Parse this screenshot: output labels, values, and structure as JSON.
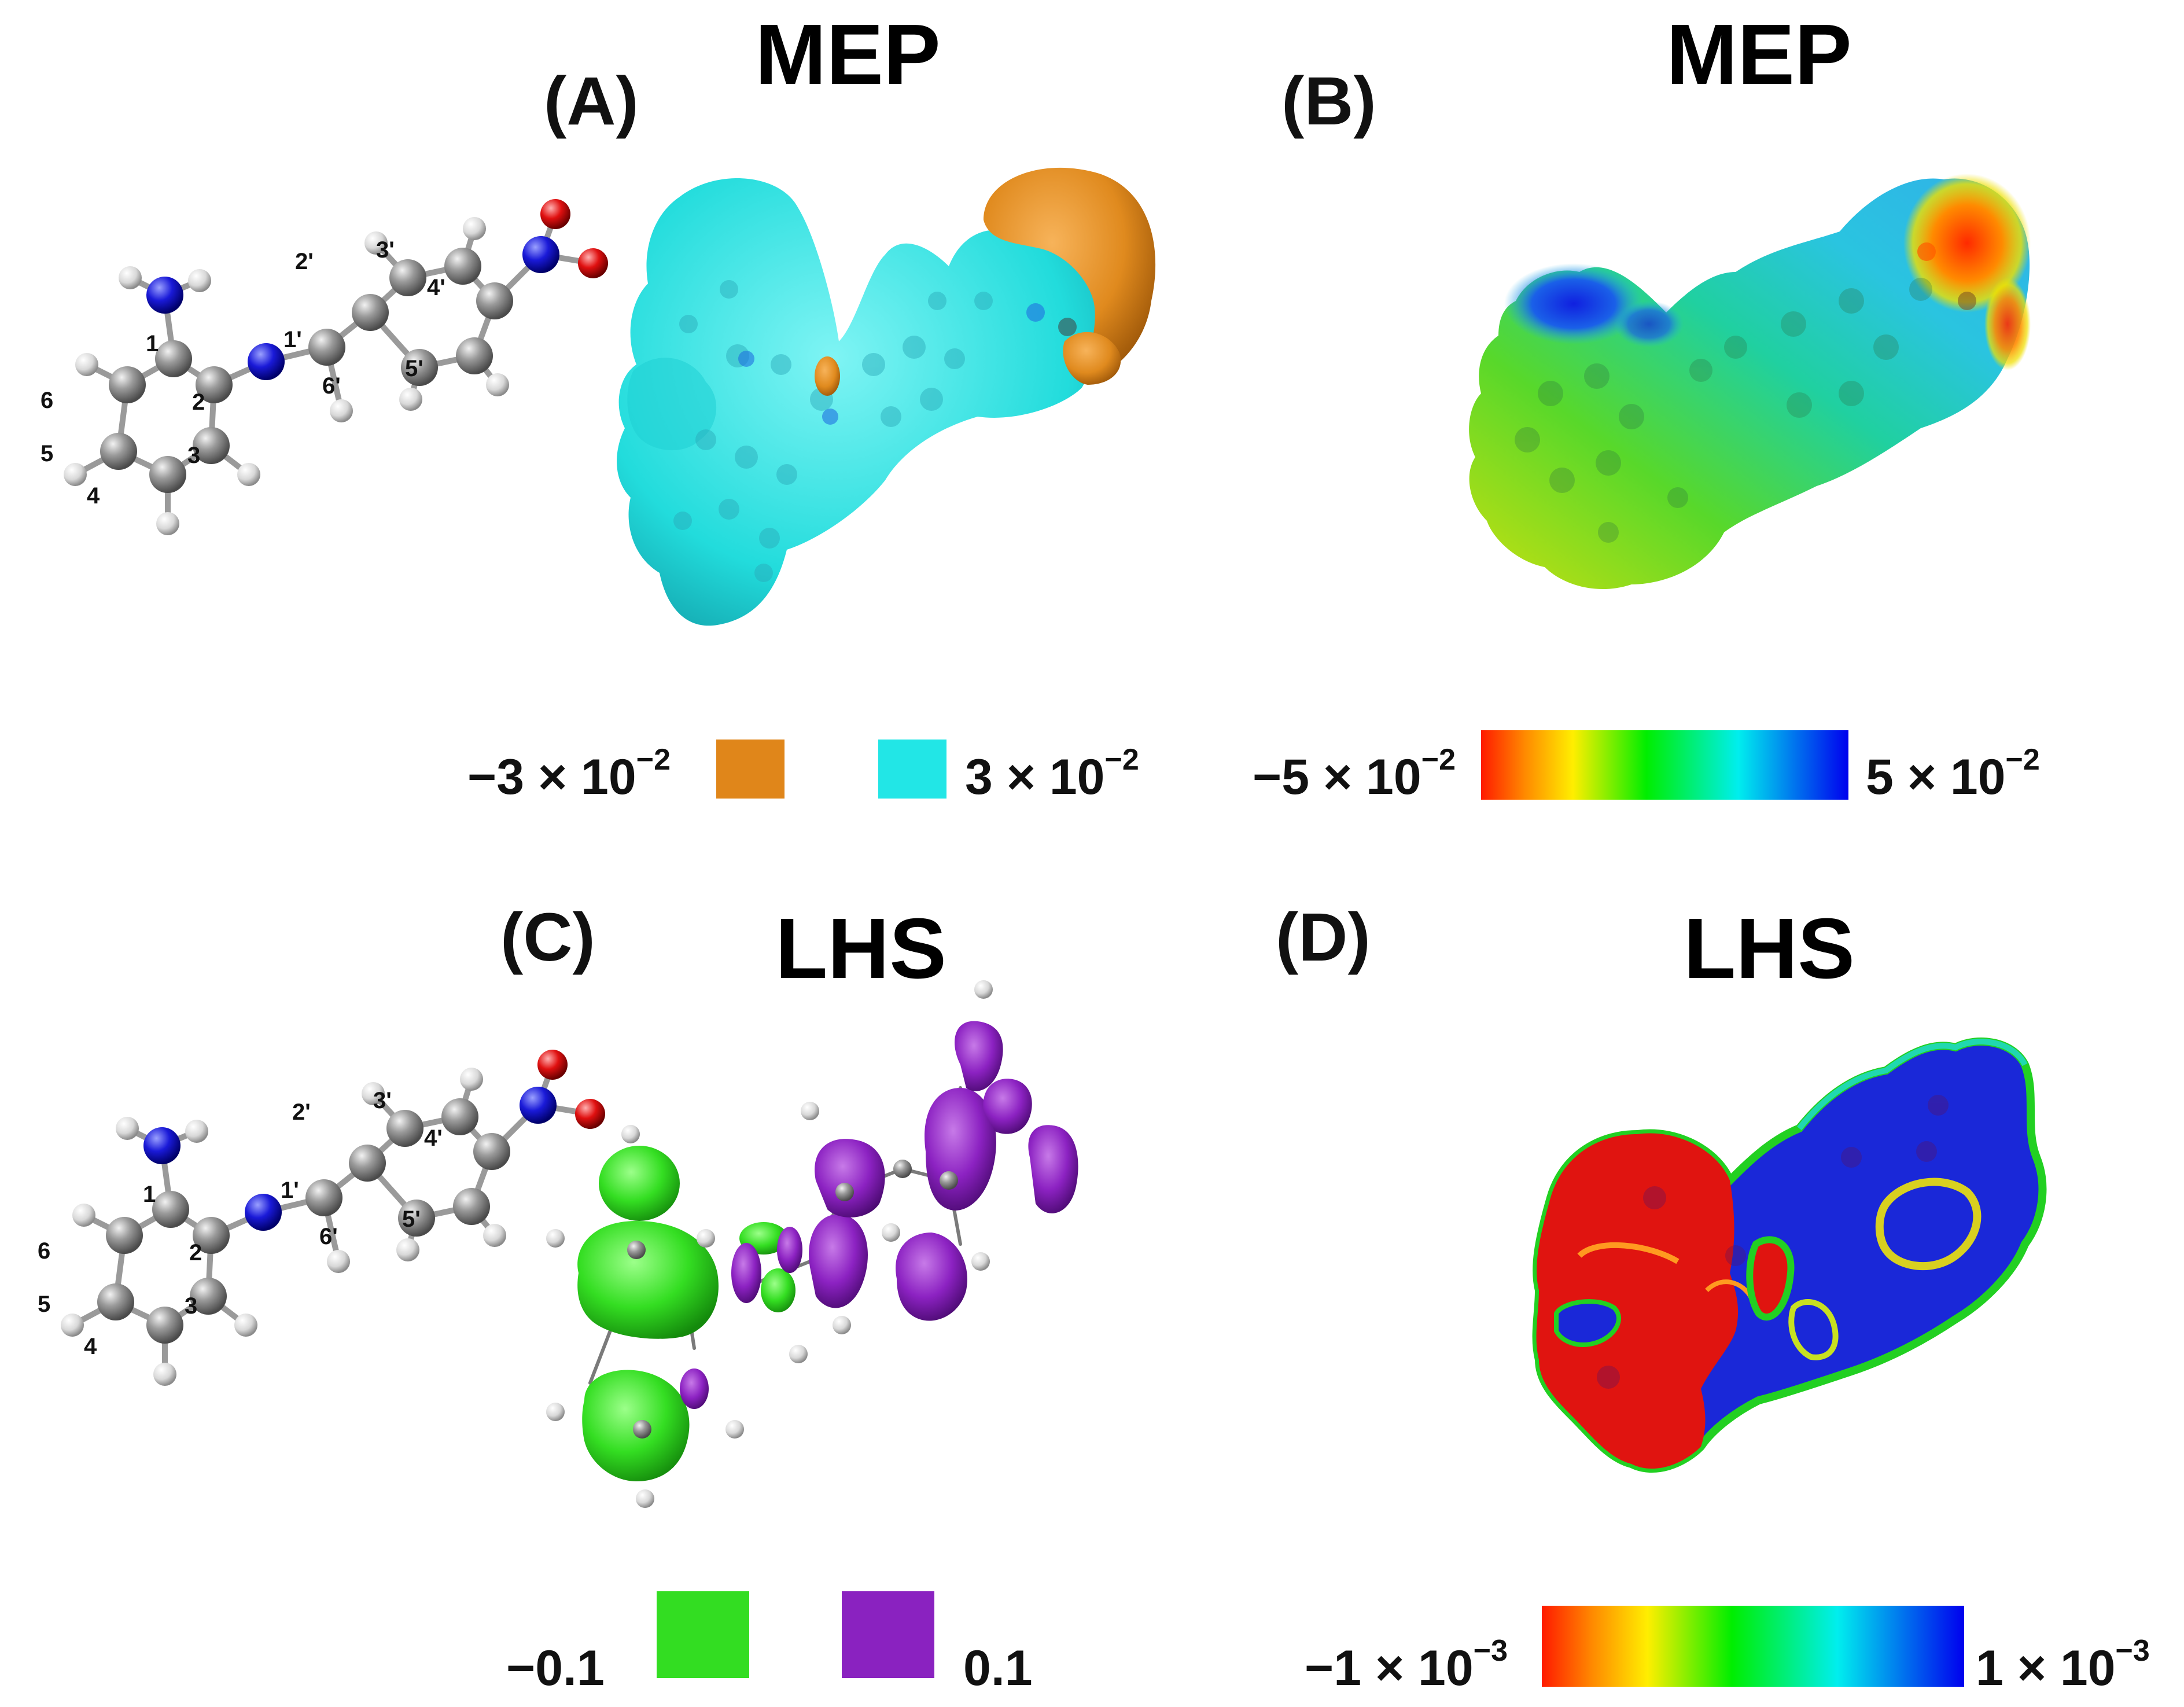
{
  "panels": [
    {
      "id": "A",
      "letter": "(A)",
      "title": "MEP",
      "legend": {
        "type": "discrete",
        "negative": {
          "base": "−3 × 10",
          "exp": "−2",
          "color": "#e0861a"
        },
        "positive": {
          "base": "3 × 10",
          "exp": "−2",
          "color": "#22e6e6"
        }
      }
    },
    {
      "id": "B",
      "letter": "(B)",
      "title": "MEP",
      "legend": {
        "type": "gradient",
        "min": {
          "base": "−5 × 10",
          "exp": "−2"
        },
        "max": {
          "base": "5 × 10",
          "exp": "−2"
        },
        "colors": [
          "#ff1a00",
          "#ffee00",
          "#00ee00",
          "#00eeee",
          "#0000ee"
        ]
      }
    },
    {
      "id": "C",
      "letter": "(C)",
      "title": "LHS",
      "legend": {
        "type": "discrete",
        "negative": {
          "base": "−0.1",
          "exp": "",
          "color": "#33dd22"
        },
        "positive": {
          "base": "0.1",
          "exp": "",
          "color": "#8a22c0"
        }
      }
    },
    {
      "id": "D",
      "letter": "(D)",
      "title": "LHS",
      "legend": {
        "type": "gradient",
        "min": {
          "base": "−1 × 10",
          "exp": "−3"
        },
        "max": {
          "base": "1 × 10",
          "exp": "−3"
        },
        "colors": [
          "#ff1a00",
          "#ffee00",
          "#00ee00",
          "#00eeee",
          "#0000ee"
        ]
      }
    }
  ],
  "molecule": {
    "atom_labels": [
      "1",
      "2",
      "3",
      "4",
      "5",
      "6",
      "1'",
      "2'",
      "3'",
      "4'",
      "5'",
      "6'"
    ],
    "atom_colors": {
      "carbon": "#8c8c8c",
      "hydrogen": "#e8e8e8",
      "nitrogen": "#1a1ad8",
      "oxygen": "#e01010"
    }
  }
}
